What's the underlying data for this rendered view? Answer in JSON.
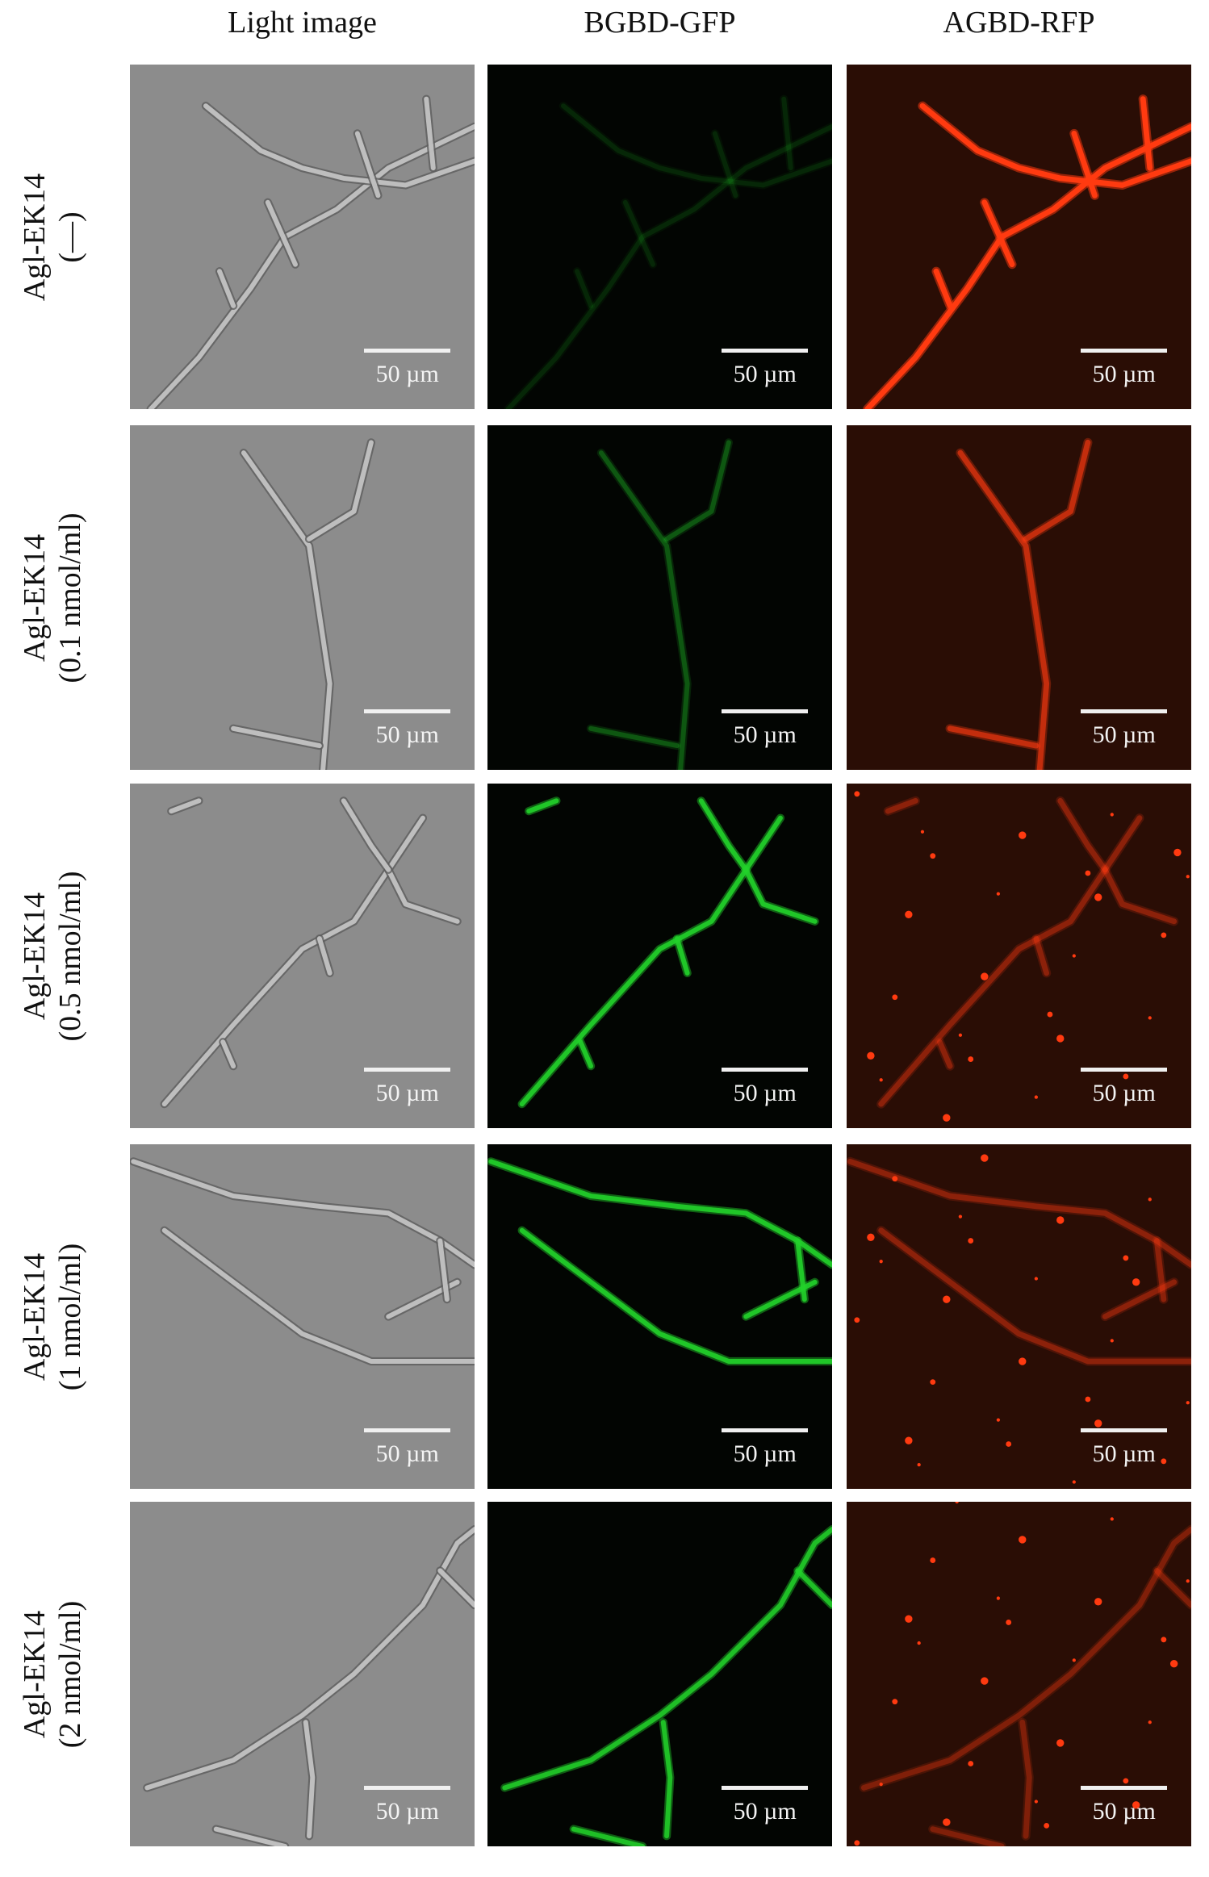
{
  "columns": [
    "Light image",
    "BGBD-GFP",
    "AGBD-RFP"
  ],
  "rows": [
    {
      "label_line1": "Agl-EK14",
      "label_line2": "(—)"
    },
    {
      "label_line1": "Agl-EK14",
      "label_line2": "(0.1 nmol/ml)"
    },
    {
      "label_line1": "Agl-EK14",
      "label_line2": "(0.5 nmol/ml)"
    },
    {
      "label_line1": "Agl-EK14",
      "label_line2": "(1 nmol/ml)"
    },
    {
      "label_line1": "Agl-EK14",
      "label_line2": "(2 nmol/ml)"
    }
  ],
  "scale_bar_label": "50 µm",
  "colors": {
    "light_bg": "#8c8c8c",
    "gfp_bg": "#020502",
    "rfp_bg": "#2a0d05",
    "gfp": "#22d12a",
    "rfp": "#ff3a10"
  }
}
